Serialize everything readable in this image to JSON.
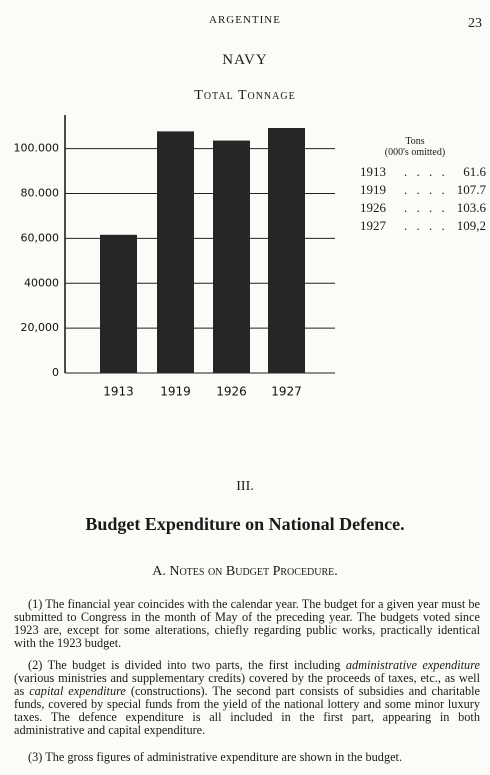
{
  "header": {
    "country": "ARGENTINE",
    "page": "23",
    "section": "NAVY"
  },
  "chart_data": {
    "type": "bar",
    "title": "Total Tonnage",
    "categories": [
      "1913",
      "1919",
      "1926",
      "1927"
    ],
    "values": [
      61600,
      107700,
      103600,
      109200
    ],
    "color": "#262626",
    "ylim": [
      0,
      115000
    ],
    "yticks": [
      0,
      {
        "value": 20000,
        "label": "20,000"
      },
      {
        "value": 40000,
        "label": "40000"
      },
      {
        "value": 60000,
        "label": "60,000"
      },
      {
        "value": 80000,
        "label": "80.000"
      },
      {
        "value": 100000,
        "label": "100.000"
      }
    ],
    "grid": true
  },
  "table": {
    "header": [
      "Tons",
      "(000's omitted)"
    ],
    "rows": [
      [
        "1913",
        "61.6"
      ],
      [
        "1919",
        "107.7"
      ],
      [
        "1926",
        "103.6"
      ],
      [
        "1927",
        "109,2"
      ]
    ]
  },
  "chapter": {
    "number": "III.",
    "title": "Budget Expenditure on National Defence.",
    "subtitle": "A. Notes on Budget Procedure."
  },
  "paragraphs": [
    [
      "(1) The financial year coincides with the calendar year. The budget for a given year must be submitted to Congress in the month of May of the preceding year. The budgets voted since 1923 are, except for some alterations, chiefly regarding public works, practically identical with the 1923 budget."
    ],
    [
      "(2) The budget is divided into two parts, the first including ",
      "administrative expenditure",
      " (various ministries and supplementary credits) covered by the proceeds of taxes, etc., as well as ",
      "capital expenditure",
      " (constructions). The second part consists of subsidies and charitable funds, covered by special funds from the yield of the national lottery and some minor luxury taxes. The defence expenditure is all included in the first part, appearing in both administrative and capital expenditure."
    ],
    [
      "(3) The gross figures of administrative expenditure are shown in the budget."
    ]
  ]
}
